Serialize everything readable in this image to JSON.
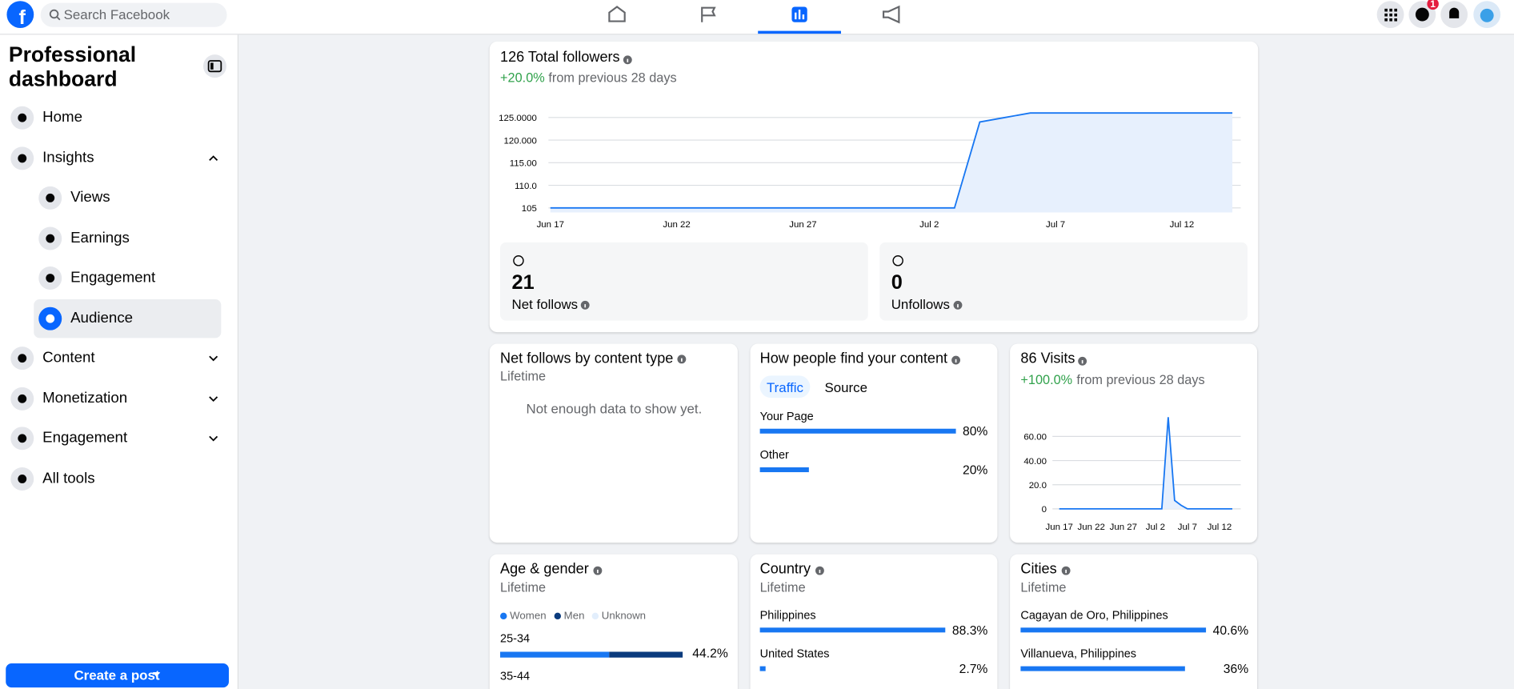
{
  "header": {
    "search_placeholder": "Search Facebook",
    "notification_badge": "1"
  },
  "sidebar": {
    "title": "Professional dashboard",
    "menu": [
      "Home",
      "Insights",
      "Views",
      "Earnings",
      "Engagement",
      "Audience",
      "Content",
      "Monetization",
      "Engagement",
      "All tools"
    ],
    "create_button": "Create a post"
  },
  "chart_data": [
    {
      "type": "line",
      "title": "126 Total followers",
      "change": "+20.0%",
      "change_text": "from previous 28 days",
      "color": "#1877f2",
      "grid": true,
      "categories": [
        "Jun 17",
        null,
        null,
        null,
        null,
        "Jun 22",
        null,
        null,
        null,
        null,
        "Jun 27",
        null,
        null,
        null,
        null,
        "Jul 2",
        null,
        null,
        null,
        null,
        "Jul 7",
        null,
        null,
        null,
        null,
        "Jul 12",
        null,
        null
      ],
      "values": [
        105,
        105,
        105,
        105,
        105,
        105,
        105,
        105,
        105,
        105,
        105,
        105,
        105,
        105,
        105,
        105,
        105,
        124,
        125,
        126,
        126,
        126,
        126,
        126,
        126,
        126,
        126,
        126
      ],
      "ylim": [
        104,
        126
      ],
      "yticks": [
        {
          "value": 125,
          "label": "125.0000"
        },
        {
          "value": 120,
          "label": "120.000"
        },
        {
          "value": 115,
          "label": "115.00"
        },
        {
          "value": 110,
          "label": "110.0"
        },
        105
      ]
    },
    {
      "type": "line",
      "title": "86 Visits",
      "change": "+100.0%",
      "change_text": "from previous 28 days",
      "color": "#1877f2",
      "grid": true,
      "categories": [
        "Jun 17",
        null,
        null,
        null,
        null,
        "Jun 22",
        null,
        null,
        null,
        null,
        "Jun 27",
        null,
        null,
        null,
        null,
        "Jul 2",
        null,
        null,
        null,
        null,
        "Jul 7",
        null,
        null,
        null,
        null,
        "Jul 12",
        null,
        null
      ],
      "values": [
        0,
        0,
        0,
        0,
        0,
        0,
        0,
        0,
        0,
        0,
        0,
        0,
        0,
        0,
        0,
        0,
        0,
        76,
        7,
        3,
        0,
        0,
        0,
        0,
        0,
        0,
        0,
        0
      ],
      "ylim": [
        0,
        80
      ],
      "yticks": [
        {
          "value": 60,
          "label": "60.00"
        },
        {
          "value": 40,
          "label": "40.00"
        },
        {
          "value": 20,
          "label": "20.0"
        },
        0
      ]
    }
  ],
  "followers_stats": {
    "net_follows": {
      "value": 21,
      "label": "Net follows"
    },
    "unfollows": {
      "value": 0,
      "label": "Unfollows"
    }
  },
  "net_follows_by_type": {
    "title": "Net follows by content type",
    "subtitle": "Lifetime",
    "empty_text": "Not enough data to show yet."
  },
  "find_content": {
    "title": "How people find your content",
    "tabs": [
      "Traffic",
      "Source"
    ],
    "rows": [
      {
        "name": "Your Page",
        "value": 80,
        "value_label": "80%"
      },
      {
        "name": "Other",
        "value": 20,
        "value_label": "20%"
      }
    ]
  },
  "age_gender": {
    "title": "Age & gender",
    "subtitle": "Lifetime",
    "legend": [
      {
        "name": "Women",
        "color": "#1877f2"
      },
      {
        "name": "Men",
        "color": "#0b3b7d"
      },
      {
        "name": "Unknown",
        "color": "#e2eefc"
      }
    ],
    "rows": [
      {
        "name": "25-34",
        "women": 26.4,
        "men": 17.8,
        "value_label": "44.2%"
      },
      {
        "name": "35-44"
      }
    ]
  },
  "country": {
    "title": "Country",
    "subtitle": "Lifetime",
    "rows": [
      {
        "name": "Philippines",
        "value": 88.3,
        "value_label": "88.3%"
      },
      {
        "name": "United States",
        "value": 2.7,
        "value_label": "2.7%"
      }
    ]
  },
  "cities": {
    "title": "Cities",
    "subtitle": "Lifetime",
    "rows": [
      {
        "name": "Cagayan de Oro, Philippines",
        "value": 40.6,
        "value_label": "40.6%"
      },
      {
        "name": "Villanueva, Philippines",
        "value": 36,
        "value_label": "36%"
      }
    ]
  }
}
